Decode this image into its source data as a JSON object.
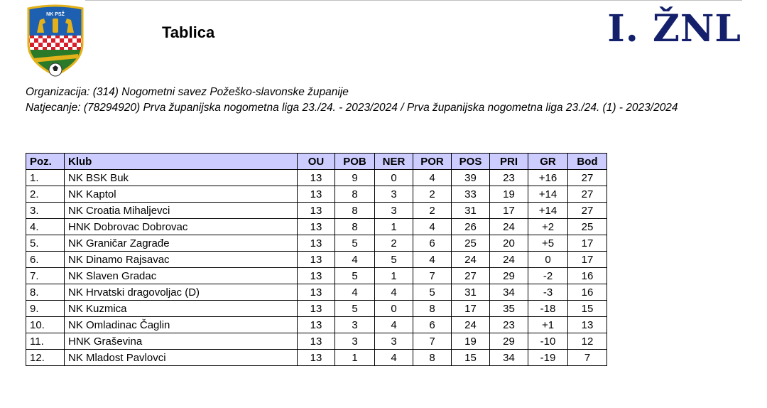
{
  "header": {
    "page_title": "Tablica",
    "league_title": "I. ŽNL",
    "logo_text": "NK PSŽ"
  },
  "meta": {
    "organizacija": "Organizacija: (314) Nogometni savez Požeško-slavonske županije",
    "natjecanje": "Natjecanje: (78294920) Prva županijska nogometna liga 23./24. - 2023/2024 / Prva županijska nogometna liga 23./24. (1) - 2023/2024"
  },
  "table": {
    "columns": [
      "Poz.",
      "Klub",
      "OU",
      "POB",
      "NER",
      "POR",
      "POS",
      "PRI",
      "GR",
      "Bod"
    ],
    "rows": [
      [
        "1.",
        "NK BSK Buk",
        "13",
        "9",
        "0",
        "4",
        "39",
        "23",
        "+16",
        "27"
      ],
      [
        "2.",
        "NK Kaptol",
        "13",
        "8",
        "3",
        "2",
        "33",
        "19",
        "+14",
        "27"
      ],
      [
        "3.",
        "NK Croatia Mihaljevci",
        "13",
        "8",
        "3",
        "2",
        "31",
        "17",
        "+14",
        "27"
      ],
      [
        "4.",
        "HNK Dobrovac Dobrovac",
        "13",
        "8",
        "1",
        "4",
        "26",
        "24",
        "+2",
        "25"
      ],
      [
        "5.",
        "NK Graničar Zagrađe",
        "13",
        "5",
        "2",
        "6",
        "25",
        "20",
        "+5",
        "17"
      ],
      [
        "6.",
        "NK Dinamo Rajsavac",
        "13",
        "4",
        "5",
        "4",
        "24",
        "24",
        "0",
        "17"
      ],
      [
        "7.",
        "NK Slaven Gradac",
        "13",
        "5",
        "1",
        "7",
        "27",
        "29",
        "-2",
        "16"
      ],
      [
        "8.",
        "NK Hrvatski dragovoljac (D)",
        "13",
        "4",
        "4",
        "5",
        "31",
        "34",
        "-3",
        "16"
      ],
      [
        "9.",
        "NK Kuzmica",
        "13",
        "5",
        "0",
        "8",
        "17",
        "35",
        "-18",
        "15"
      ],
      [
        "10.",
        "NK Omladinac Čaglin",
        "13",
        "3",
        "4",
        "6",
        "24",
        "23",
        "+1",
        "13"
      ],
      [
        "11.",
        "HNK Graševina",
        "13",
        "3",
        "3",
        "7",
        "19",
        "29",
        "-10",
        "12"
      ],
      [
        "12.",
        "NK Mladost Pavlovci",
        "13",
        "1",
        "4",
        "8",
        "15",
        "34",
        "-19",
        "7"
      ]
    ]
  },
  "colors": {
    "header_bg": "#ccccff",
    "league_title": "#14206b",
    "shield_blue": "#1d5fb0",
    "shield_red": "#d81e2a",
    "shield_gold": "#e3b21b"
  }
}
